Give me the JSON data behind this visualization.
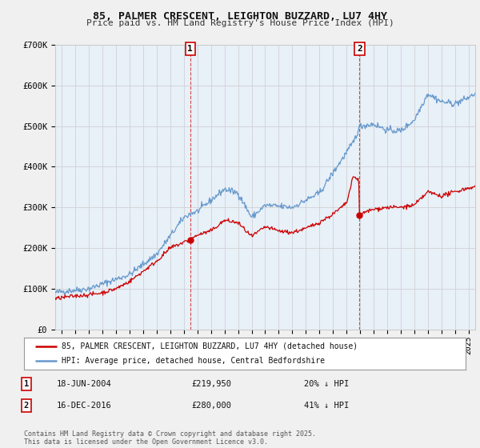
{
  "title_line1": "85, PALMER CRESCENT, LEIGHTON BUZZARD, LU7 4HY",
  "title_line2": "Price paid vs. HM Land Registry's House Price Index (HPI)",
  "legend_label_red": "85, PALMER CRESCENT, LEIGHTON BUZZARD, LU7 4HY (detached house)",
  "legend_label_blue": "HPI: Average price, detached house, Central Bedfordshire",
  "annotation1": {
    "label": "1",
    "date_str": "18-JUN-2004",
    "price": "£219,950",
    "hpi_note": "20% ↓ HPI",
    "x_year": 2004.46,
    "y_value": 219950
  },
  "annotation2": {
    "label": "2",
    "date_str": "16-DEC-2016",
    "price": "£280,000",
    "hpi_note": "41% ↓ HPI",
    "x_year": 2016.96,
    "y_value": 280000
  },
  "vline1_x": 2004.46,
  "vline2_x": 2016.96,
  "footer": "Contains HM Land Registry data © Crown copyright and database right 2025.\nThis data is licensed under the Open Government Licence v3.0.",
  "bg_color": "#f0f0f0",
  "plot_bg_color": "#e8f0f8",
  "red_color": "#cc0000",
  "blue_color": "#6699cc",
  "ylim": [
    0,
    700000
  ],
  "xlim_start": 1994.5,
  "xlim_end": 2025.5,
  "yticks": [
    0,
    100000,
    200000,
    300000,
    400000,
    500000,
    600000,
    700000
  ],
  "ytick_labels": [
    "£0",
    "£100K",
    "£200K",
    "£300K",
    "£400K",
    "£500K",
    "£600K",
    "£700K"
  ],
  "xtick_years": [
    1995,
    1996,
    1997,
    1998,
    1999,
    2000,
    2001,
    2002,
    2003,
    2004,
    2005,
    2006,
    2007,
    2008,
    2009,
    2010,
    2011,
    2012,
    2013,
    2014,
    2015,
    2016,
    2017,
    2018,
    2019,
    2020,
    2021,
    2022,
    2023,
    2024,
    2025
  ]
}
